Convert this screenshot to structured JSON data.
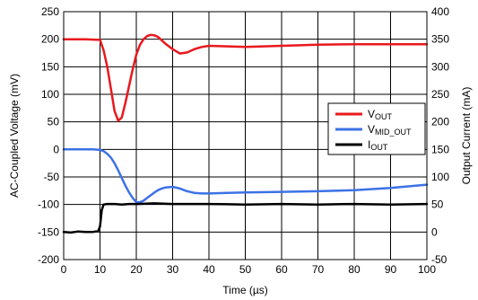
{
  "chart_data": {
    "type": "line",
    "xlabel": "Time (µs)",
    "ylabel_left": "AC-Coupled Voltage (mV)",
    "ylabel_right": "Output Current (mA)",
    "xlim": [
      0,
      100
    ],
    "ylim_left": [
      -200,
      250
    ],
    "ylim_right": [
      -50,
      400
    ],
    "xticks": [
      "0",
      "10",
      "20",
      "30",
      "40",
      "50",
      "60",
      "70",
      "80",
      "90",
      "100"
    ],
    "yticks_left": [
      "-200",
      "-150",
      "-100",
      "-50",
      "0",
      "50",
      "100",
      "150",
      "200",
      "250"
    ],
    "yticks_right": [
      "-50",
      "0",
      "50",
      "100",
      "150",
      "200",
      "250",
      "300",
      "350",
      "400"
    ],
    "grid": true,
    "legend_position": "right-middle",
    "series": [
      {
        "name_main": "V",
        "name_sub": "OUT",
        "color": "#e8191e",
        "axis": "left",
        "x": [
          0,
          6,
          9,
          10,
          11,
          12,
          13,
          14,
          15,
          16,
          17,
          18,
          19,
          20,
          21,
          22,
          23,
          24,
          25,
          26,
          27,
          28,
          30,
          32,
          34,
          36,
          38,
          40,
          45,
          50,
          60,
          70,
          80,
          90,
          100
        ],
        "y": [
          200,
          200,
          199,
          199,
          180,
          150,
          110,
          70,
          52,
          58,
          85,
          115,
          145,
          172,
          190,
          200,
          206,
          208,
          207,
          204,
          198,
          192,
          182,
          174,
          176,
          182,
          186,
          188,
          187,
          186,
          188,
          190,
          191,
          191,
          191
        ]
      },
      {
        "name_main": "V",
        "name_sub": "MID_OUT",
        "color": "#3d72e6",
        "axis": "left",
        "x": [
          0,
          8,
          10,
          11,
          12,
          13,
          14,
          15,
          16,
          17,
          18,
          19,
          20,
          21,
          22,
          23,
          24,
          25,
          26,
          27,
          28,
          30,
          32,
          34,
          36,
          38,
          40,
          45,
          50,
          60,
          70,
          80,
          90,
          100
        ],
        "y": [
          0,
          0,
          -1,
          -3,
          -8,
          -15,
          -25,
          -38,
          -52,
          -66,
          -78,
          -88,
          -96,
          -96,
          -93,
          -88,
          -83,
          -78,
          -74,
          -71,
          -69,
          -68,
          -71,
          -76,
          -79,
          -80,
          -80,
          -79,
          -78,
          -77,
          -76,
          -74,
          -70,
          -64
        ]
      },
      {
        "name_main": "I",
        "name_sub": "OUT",
        "color": "#000000",
        "axis": "right",
        "x": [
          0,
          2,
          4,
          6,
          8,
          9.5,
          10,
          10.5,
          11,
          12,
          14,
          16,
          18,
          20,
          25,
          30,
          40,
          50,
          60,
          70,
          80,
          90,
          100
        ],
        "y": [
          0,
          -1,
          1,
          0,
          0,
          2,
          10,
          40,
          50,
          51,
          51,
          50,
          51,
          51,
          52,
          51,
          51,
          50,
          51,
          50,
          51,
          50,
          51
        ]
      }
    ]
  }
}
